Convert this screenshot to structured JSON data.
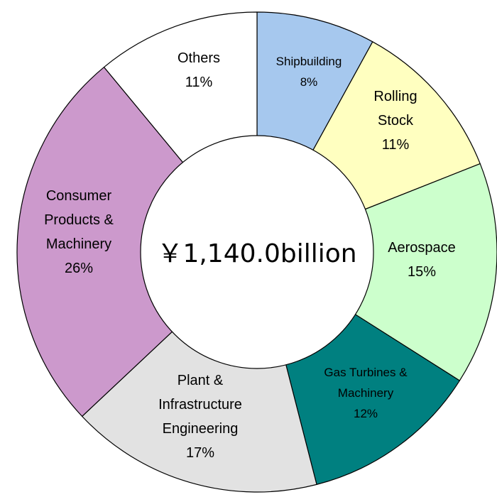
{
  "chart_data": {
    "type": "pie",
    "total_label": "￥1,140.0billion",
    "slices": [
      {
        "lines": [
          "Shipbuilding",
          "8%"
        ],
        "value": 8,
        "color": "#A6C8EE"
      },
      {
        "lines": [
          "Rolling",
          "Stock",
          "11%"
        ],
        "value": 11,
        "color": "#FFFFC0"
      },
      {
        "lines": [
          "Aerospace",
          "15%"
        ],
        "value": 15,
        "color": "#CCFFCC"
      },
      {
        "lines": [
          "Gas Turbines &",
          "Machinery",
          "12%"
        ],
        "value": 12,
        "color": "#008080"
      },
      {
        "lines": [
          "Plant &",
          "Infrastructure",
          "Engineering",
          "17%"
        ],
        "value": 17,
        "color": "#E2E2E2"
      },
      {
        "lines": [
          "Consumer",
          "Products &",
          "Machinery",
          "26%"
        ],
        "value": 26,
        "color": "#CC99CC"
      },
      {
        "lines": [
          "Others",
          "11%"
        ],
        "value": 11,
        "color": "#FFFFFF"
      }
    ]
  }
}
